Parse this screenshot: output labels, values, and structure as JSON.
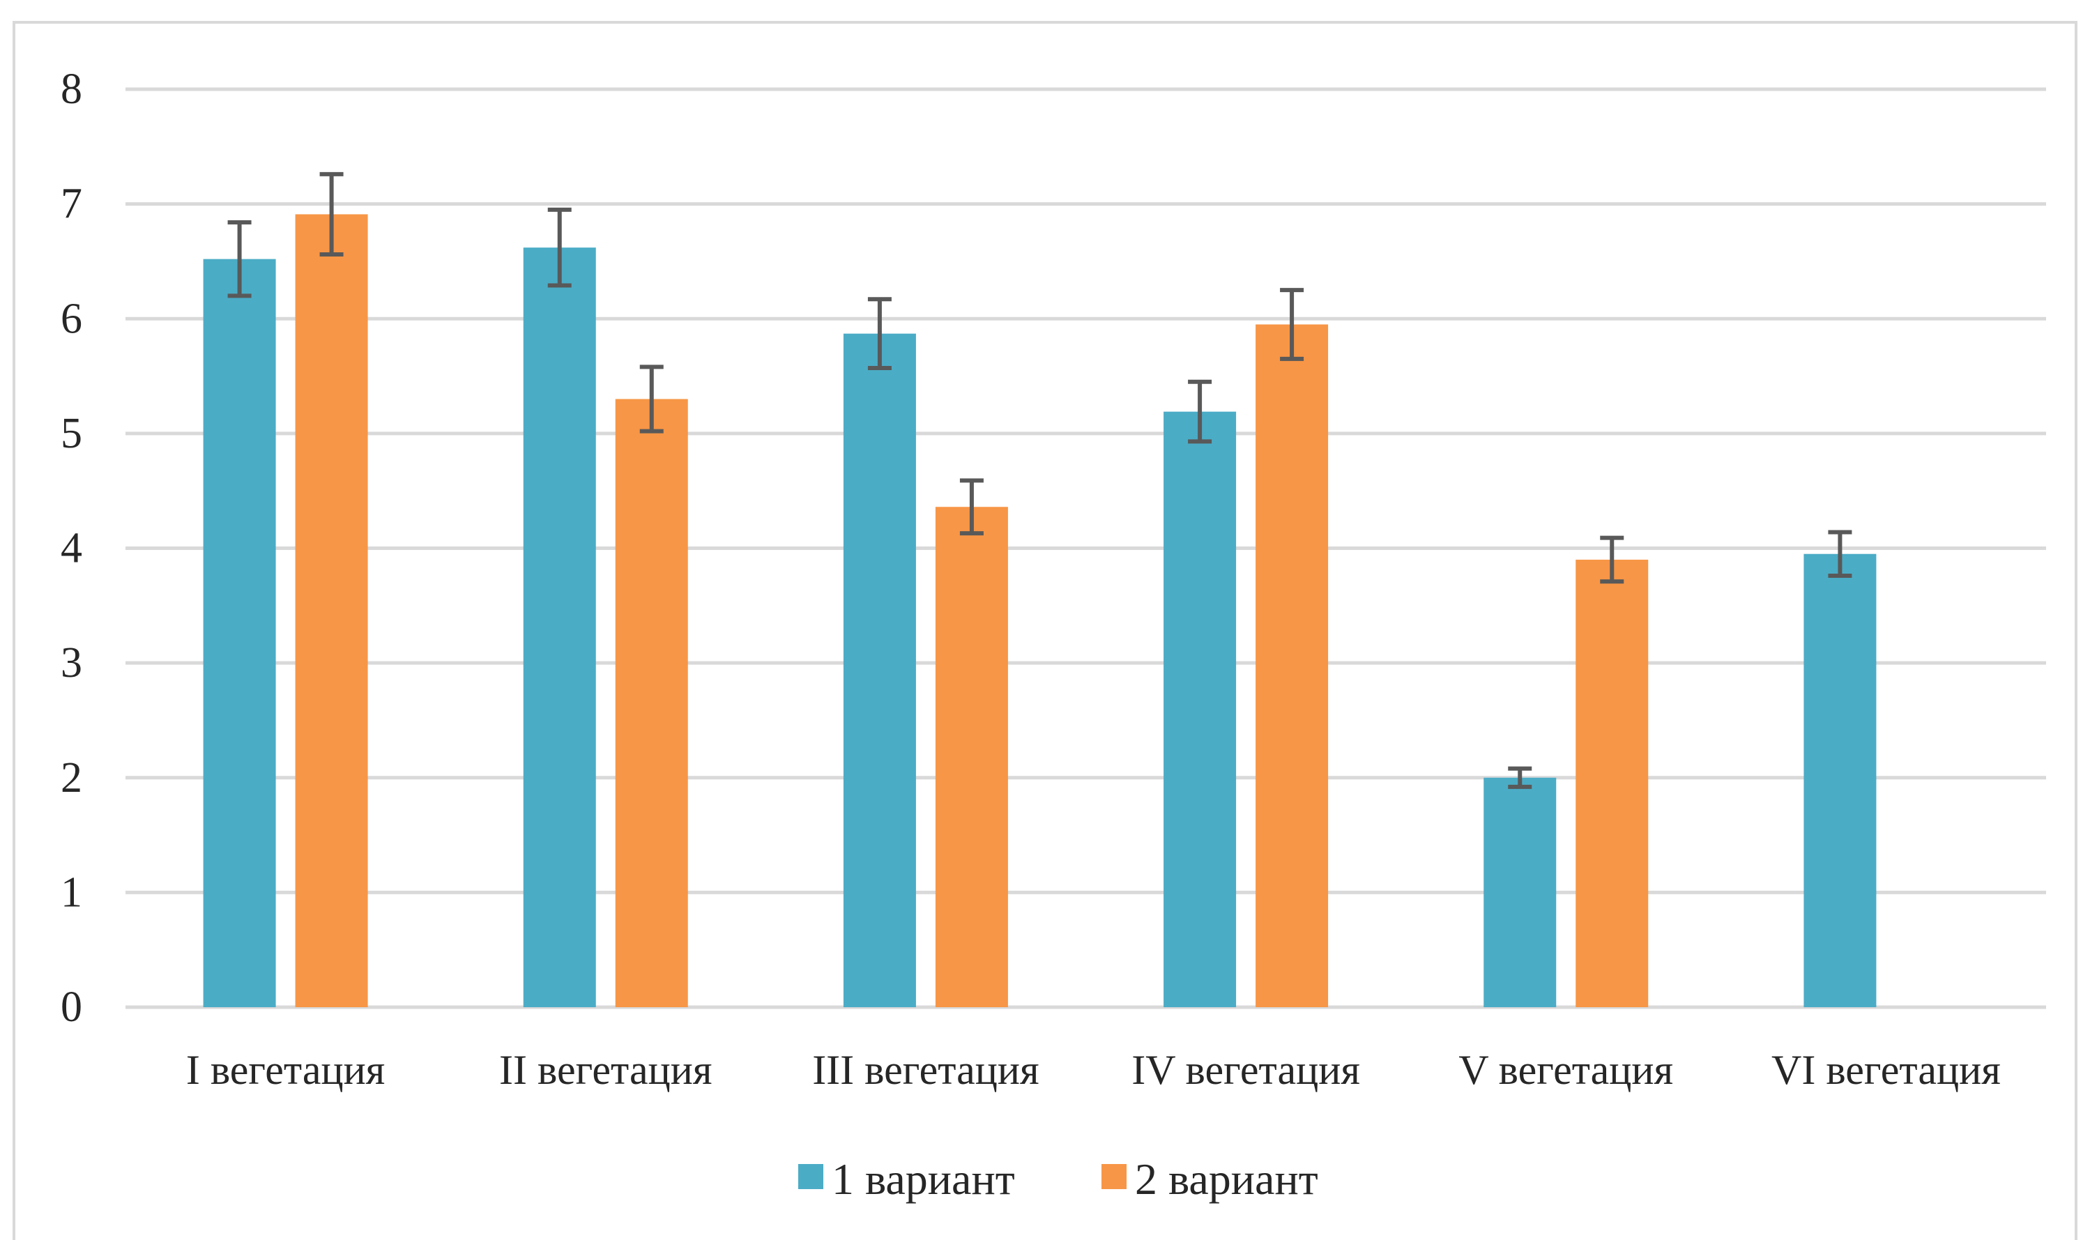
{
  "chart_data": {
    "type": "bar",
    "title": "",
    "xlabel": "",
    "ylabel": "",
    "ylim": [
      0,
      8
    ],
    "yticks": [
      0,
      1,
      2,
      3,
      4,
      5,
      6,
      7,
      8
    ],
    "grid": true,
    "legend_position": "bottom",
    "categories": [
      "I вегетация",
      "II вегетация",
      "III вегетация",
      "IV вегетация",
      "V вегетация",
      "VI вегетация"
    ],
    "series": [
      {
        "name": "1 вариант",
        "color": "#4bacc6",
        "values": [
          6.52,
          6.62,
          5.87,
          5.19,
          2.0,
          3.95
        ],
        "errors": [
          0.32,
          0.33,
          0.3,
          0.26,
          0.08,
          0.19
        ]
      },
      {
        "name": "2 вариант",
        "color": "#f79646",
        "values": [
          6.91,
          5.3,
          4.36,
          5.95,
          3.9,
          null
        ],
        "errors": [
          0.35,
          0.28,
          0.23,
          0.3,
          0.19,
          null
        ]
      }
    ],
    "error_bar_color": "#595959"
  }
}
